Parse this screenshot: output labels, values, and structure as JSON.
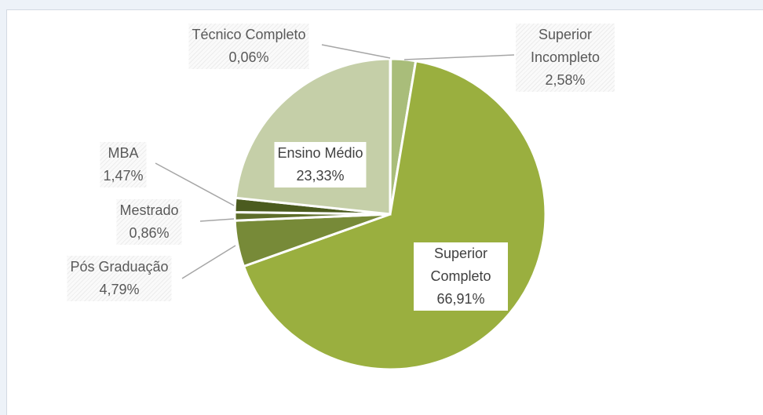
{
  "chart_data": {
    "type": "pie",
    "categories": [
      "Técnico Completo",
      "Superior Incompleto",
      "Superior Completo",
      "Pós Graduação",
      "Mestrado",
      "MBA",
      "Ensino Médio"
    ],
    "values": [
      0.06,
      2.58,
      66.91,
      4.79,
      0.86,
      1.47,
      23.33
    ],
    "value_labels": [
      "0,06%",
      "2,58%",
      "66,91%",
      "4,79%",
      "0,86%",
      "1,47%",
      "23,33%"
    ],
    "colors": [
      "#a3b86a",
      "#a9bd7a",
      "#9aaf3f",
      "#778a38",
      "#5d6d29",
      "#4b5b1f",
      "#c5cfa8"
    ]
  }
}
